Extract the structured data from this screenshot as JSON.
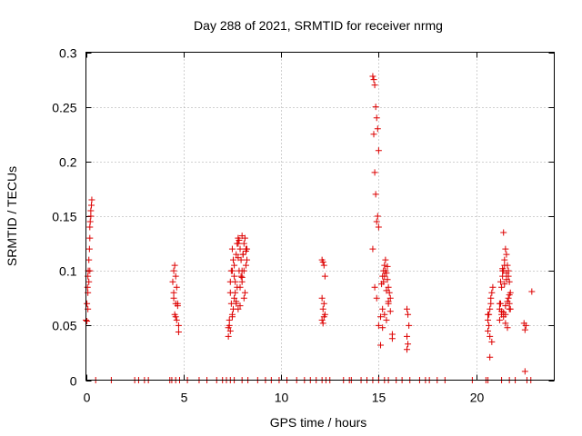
{
  "chart_data": {
    "type": "scatter",
    "title": "Day 288 of 2021, SRMTID for receiver nrmg",
    "xlabel": "GPS time / hours",
    "ylabel": "SRMTID / TECUs",
    "xlim": [
      0,
      24
    ],
    "ylim": [
      0,
      0.3
    ],
    "xticks": [
      0,
      5,
      10,
      15,
      20
    ],
    "xtick_labels": [
      "0",
      "5",
      "10",
      "15",
      "20"
    ],
    "yticks": [
      0,
      0.05,
      0.1,
      0.15,
      0.2,
      0.25,
      0.3
    ],
    "ytick_labels": [
      "0",
      "0.05",
      "0.1",
      "0.15",
      "0.2",
      "0.25",
      "0.3"
    ],
    "grid": true,
    "marker": "+",
    "color": "#dd0000",
    "series": [
      {
        "name": "SRMTID",
        "x": [
          0.0,
          0.05,
          0.08,
          0.1,
          0.12,
          0.15,
          0.18,
          0.2,
          0.22,
          0.25,
          0.28,
          0.3,
          0.05,
          0.1,
          0.15,
          0.2,
          0.1,
          0.2,
          0.25,
          4.45,
          4.5,
          4.55,
          4.6,
          4.65,
          4.5,
          4.6,
          4.7,
          4.7,
          4.55,
          4.65,
          4.75,
          4.75,
          4.5,
          4.6,
          7.3,
          7.35,
          7.4,
          7.45,
          7.5,
          7.55,
          7.6,
          7.65,
          7.7,
          7.75,
          7.8,
          7.85,
          7.9,
          7.95,
          8.0,
          8.05,
          8.1,
          8.15,
          8.2,
          8.25,
          7.4,
          7.5,
          7.6,
          7.7,
          7.8,
          7.9,
          8.0,
          8.1,
          8.2,
          7.35,
          7.55,
          7.75,
          7.95,
          8.15,
          7.45,
          7.65,
          7.85,
          8.05,
          8.25,
          7.3,
          7.5,
          7.7,
          7.9,
          8.1,
          7.4,
          7.6,
          7.8,
          8.0,
          8.2,
          7.5,
          7.8,
          8.0,
          12.1,
          12.15,
          12.2,
          12.25,
          12.1,
          12.2,
          12.15,
          12.25,
          12.2,
          12.1,
          12.15,
          14.7,
          14.75,
          14.8,
          14.85,
          14.9,
          14.95,
          15.0,
          14.75,
          14.8,
          14.85,
          14.9,
          14.95,
          15.0,
          14.7,
          14.8,
          14.9,
          15.0,
          15.1,
          15.2,
          15.25,
          15.3,
          15.35,
          15.4,
          15.45,
          15.5,
          15.55,
          15.6,
          15.2,
          15.3,
          15.4,
          15.5,
          15.25,
          15.35,
          15.45,
          15.15,
          15.3,
          15.4,
          15.5,
          15.6,
          15.1,
          15.2,
          15.7,
          15.7,
          16.45,
          16.5,
          16.55,
          16.45,
          16.5,
          16.45,
          20.6,
          20.65,
          20.7,
          20.75,
          20.8,
          20.85,
          20.6,
          20.7,
          20.8,
          20.65,
          20.75,
          20.7,
          20.6,
          21.2,
          21.25,
          21.3,
          21.35,
          21.4,
          21.45,
          21.5,
          21.55,
          21.6,
          21.65,
          21.7,
          21.75,
          21.2,
          21.3,
          21.4,
          21.5,
          21.6,
          21.7,
          21.25,
          21.35,
          21.45,
          21.55,
          21.65,
          21.3,
          21.4,
          21.5,
          21.6,
          21.7,
          21.2,
          21.45,
          21.55,
          21.35,
          21.65,
          21.4,
          21.5,
          21.7,
          21.75,
          22.45,
          22.5,
          22.55,
          22.5,
          22.85,
          0.5,
          1.3,
          2.5,
          2.7,
          3.0,
          3.2,
          4.3,
          4.4,
          4.6,
          4.8,
          5.2,
          5.8,
          6.2,
          6.7,
          7.0,
          7.2,
          7.4,
          7.6,
          8.0,
          8.3,
          8.8,
          9.2,
          9.5,
          9.9,
          10.3,
          10.8,
          11.2,
          11.5,
          11.8,
          12.1,
          12.3,
          12.5,
          13.2,
          13.5,
          13.6,
          14.1,
          14.4,
          14.7,
          15.0,
          15.3,
          15.5,
          15.9,
          16.2,
          16.6,
          17.1,
          17.4,
          17.6,
          18.0,
          18.4,
          19.8,
          20.5,
          20.6,
          21.3,
          21.7,
          22.0,
          22.6,
          22.8
        ],
        "y": [
          0.055,
          0.07,
          0.085,
          0.095,
          0.1,
          0.11,
          0.12,
          0.13,
          0.145,
          0.155,
          0.16,
          0.165,
          0.054,
          0.08,
          0.09,
          0.1,
          0.065,
          0.14,
          0.15,
          0.09,
          0.1,
          0.105,
          0.095,
          0.085,
          0.075,
          0.07,
          0.07,
          0.068,
          0.06,
          0.055,
          0.05,
          0.044,
          0.08,
          0.058,
          0.04,
          0.055,
          0.08,
          0.1,
          0.12,
          0.11,
          0.095,
          0.09,
          0.115,
          0.125,
          0.13,
          0.128,
          0.12,
          0.11,
          0.1,
          0.115,
          0.125,
          0.13,
          0.12,
          0.11,
          0.045,
          0.06,
          0.075,
          0.07,
          0.065,
          0.085,
          0.09,
          0.1,
          0.105,
          0.05,
          0.065,
          0.085,
          0.095,
          0.08,
          0.07,
          0.08,
          0.1,
          0.115,
          0.12,
          0.048,
          0.058,
          0.072,
          0.068,
          0.075,
          0.09,
          0.105,
          0.125,
          0.132,
          0.118,
          0.1,
          0.112,
          0.094,
          0.11,
          0.108,
          0.105,
          0.095,
          0.075,
          0.07,
          0.065,
          0.06,
          0.058,
          0.055,
          0.052,
          0.278,
          0.275,
          0.27,
          0.25,
          0.24,
          0.23,
          0.21,
          0.225,
          0.19,
          0.17,
          0.145,
          0.15,
          0.14,
          0.12,
          0.085,
          0.075,
          0.05,
          0.032,
          0.095,
          0.1,
          0.105,
          0.11,
          0.098,
          0.092,
          0.085,
          0.08,
          0.075,
          0.065,
          0.06,
          0.055,
          0.07,
          0.09,
          0.1,
          0.104,
          0.088,
          0.095,
          0.082,
          0.072,
          0.063,
          0.058,
          0.048,
          0.042,
          0.038,
          0.065,
          0.06,
          0.05,
          0.04,
          0.033,
          0.028,
          0.055,
          0.06,
          0.065,
          0.07,
          0.08,
          0.085,
          0.045,
          0.04,
          0.035,
          0.05,
          0.075,
          0.021,
          0.06,
          0.065,
          0.07,
          0.085,
          0.095,
          0.1,
          0.11,
          0.12,
          0.115,
          0.105,
          0.1,
          0.09,
          0.08,
          0.055,
          0.06,
          0.062,
          0.068,
          0.072,
          0.078,
          0.09,
          0.1,
          0.105,
          0.098,
          0.095,
          0.063,
          0.058,
          0.052,
          0.048,
          0.065,
          0.07,
          0.088,
          0.092,
          0.102,
          0.075,
          0.135,
          0.06,
          0.07,
          0.065,
          0.052,
          0.046,
          0.05,
          0.008,
          0.081,
          0,
          0,
          0,
          0,
          0,
          0,
          0,
          0,
          0,
          0,
          0,
          0,
          0,
          0,
          0,
          0,
          0,
          0,
          0,
          0,
          0,
          0,
          0,
          0,
          0,
          0,
          0,
          0,
          0,
          0,
          0,
          0,
          0,
          0,
          0,
          0,
          0,
          0,
          0,
          0,
          0,
          0,
          0,
          0,
          0,
          0,
          0,
          0,
          0,
          0,
          0,
          0,
          0,
          0,
          0,
          0,
          0
        ]
      }
    ]
  }
}
